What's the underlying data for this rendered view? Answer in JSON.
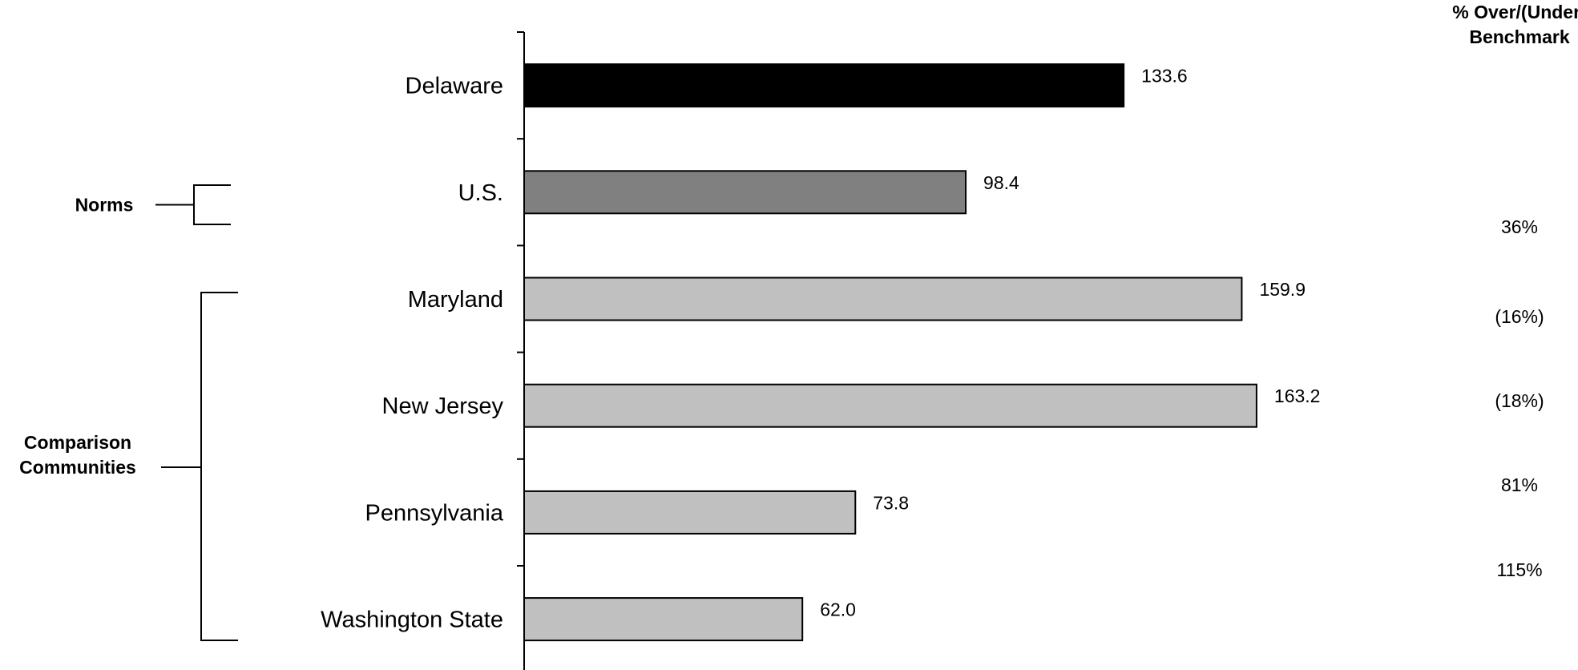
{
  "chart_data": {
    "type": "bar",
    "orientation": "horizontal",
    "categories": [
      "Delaware",
      "U.S.",
      "Maryland",
      "New Jersey",
      "Pennsylvania",
      "Washington State"
    ],
    "values": [
      133.6,
      98.4,
      159.9,
      163.2,
      73.8,
      62.0
    ],
    "value_labels": [
      "133.6",
      "98.4",
      "159.9",
      "163.2",
      "73.8",
      "62.0"
    ],
    "bar_colors": [
      "#000000",
      "#808080",
      "#c0c0c0",
      "#c0c0c0",
      "#c0c0c0",
      "#c0c0c0"
    ],
    "xlim": [
      0,
      175
    ],
    "grid": false,
    "legend": "none",
    "benchmark_header": [
      "% Over/(Under)",
      "Benchmark"
    ],
    "benchmark_values": [
      "36%",
      "(16%)",
      "(18%)",
      "81%",
      "115%"
    ],
    "groups": [
      {
        "label": [
          "Norms"
        ],
        "members": [
          "U.S."
        ]
      },
      {
        "label": [
          "Comparison",
          "Communities"
        ],
        "members": [
          "Maryland",
          "New Jersey",
          "Pennsylvania",
          "Washington State"
        ]
      }
    ]
  }
}
